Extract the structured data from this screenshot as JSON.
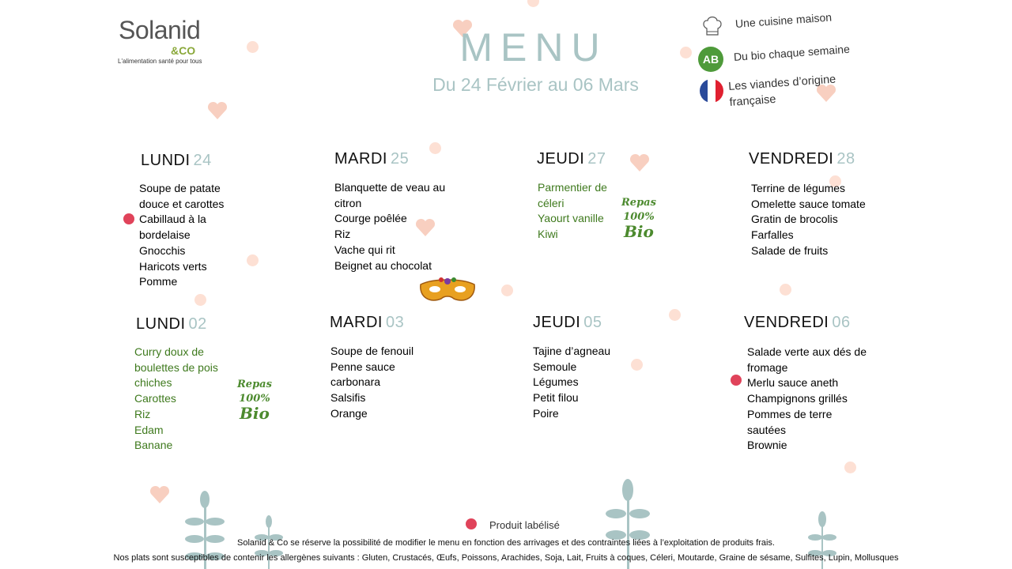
{
  "logo": {
    "name": "Solanid",
    "co": "&CO",
    "tagline": "L'alimentation santé pour tous"
  },
  "header": {
    "title": "MENU",
    "subtitle": "Du 24 Février au 06 Mars"
  },
  "features": [
    {
      "icon": "chef-hat-icon",
      "label": "Une cuisine maison"
    },
    {
      "icon": "ab-bio-icon",
      "label": "Du bio chaque semaine"
    },
    {
      "icon": "french-flag-icon",
      "label": "Les viandes d’origine française"
    }
  ],
  "bio_badge": {
    "line1": "Repas",
    "line2": "100%",
    "line3": "Bio"
  },
  "days": [
    {
      "name": "LUNDI",
      "num": "24",
      "dishes": [
        "Soupe de patate douce et carottes",
        "Cabillaud à la bordelaise",
        "Gnocchis",
        "Haricots verts",
        "Pomme"
      ]
    },
    {
      "name": "MARDI",
      "num": "25",
      "dishes": [
        "Blanquette de veau au citron",
        "Courge poêlée",
        "Riz",
        "Vache qui rit",
        "Beignet au chocolat"
      ]
    },
    {
      "name": "JEUDI",
      "num": "27",
      "dishes": [
        "Parmentier de céleri",
        "Yaourt vanille",
        "Kiwi"
      ]
    },
    {
      "name": "VENDREDI",
      "num": "28",
      "dishes": [
        "Terrine de légumes",
        "Omelette sauce tomate",
        "Gratin de brocolis",
        "Farfalles",
        "Salade de fruits"
      ]
    },
    {
      "name": "LUNDI",
      "num": "02",
      "dishes": [
        "Curry doux de boulettes de pois chiches",
        "Carottes",
        "Riz",
        "Edam",
        "Banane"
      ]
    },
    {
      "name": "MARDI",
      "num": "03",
      "dishes": [
        "Soupe de fenouil",
        "Penne sauce carbonara",
        "Salsifis",
        "Orange"
      ]
    },
    {
      "name": "JEUDI",
      "num": "05",
      "dishes": [
        "Tajine d’agneau",
        "Semoule",
        "Légumes",
        "Petit filou",
        "Poire"
      ]
    },
    {
      "name": "VENDREDI",
      "num": "06",
      "dishes": [
        "Salade verte aux dés de fromage",
        "Merlu sauce aneth",
        "Champignons grillés",
        "Pommes de terre sautées",
        "Brownie"
      ]
    }
  ],
  "footer": {
    "legend": "Produit labélisé",
    "notice": "Solanid & Co se réserve la possibilité de modifier le menu en fonction des arrivages et des contraintes liées à l’exploitation de produits frais.",
    "allergens": "Nos plats sont susceptibles de contenir les allergènes suivants : Gluten, Crustacés, Œufs, Poissons, Arachides, Soja, Lait, Fruits à coques, Céleri, Moutarde, Graine de sésame, Sulfites, Lupin, Mollusques"
  },
  "colors": {
    "accent": "#a9c4c4",
    "bio": "#3f7a1e",
    "label": "#e0435a"
  }
}
